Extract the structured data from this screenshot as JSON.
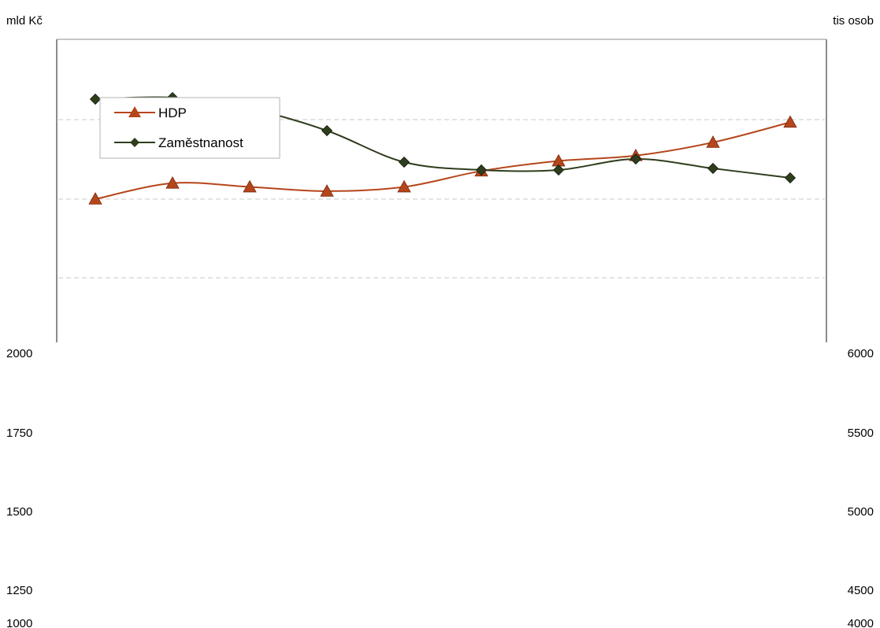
{
  "chart_data": {
    "type": "line",
    "title": "",
    "y_left_label": "mld Kč",
    "y_right_label": "tis osob",
    "y_left_ticks": [
      2000,
      1750,
      1500,
      1250,
      1000
    ],
    "y_right_ticks": [
      6000,
      5500,
      5000,
      4500,
      4000
    ],
    "x_points": 10,
    "gridlines": "dashed-horizontal",
    "legend_position": "top-left",
    "series": [
      {
        "name": "HDP",
        "axis": "left",
        "marker": "triangle",
        "color": "#b5451b",
        "values": [
          2750,
          2780,
          2773,
          2765,
          2773,
          2803,
          2822,
          2832,
          2857,
          2895
        ]
      },
      {
        "name": "Zaměstnanost",
        "axis": "right",
        "marker": "diamond",
        "color": "#2e3d1c",
        "values": [
          7580,
          7582,
          7568,
          7540,
          7500,
          7490,
          7490,
          7504,
          7492,
          7480
        ]
      }
    ]
  }
}
